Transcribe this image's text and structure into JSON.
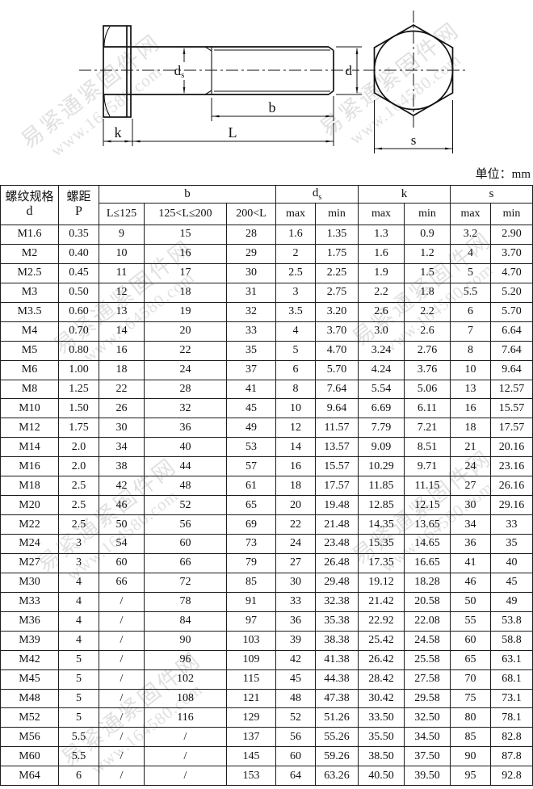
{
  "page": {
    "unit_label": "单位：mm"
  },
  "watermark": {
    "site_name": "易紧通紧固件网",
    "site_url": "www.164580.com"
  },
  "drawing": {
    "labels": {
      "k": "k",
      "L": "L",
      "b": "b",
      "ds_main": "d",
      "ds_sub": "s",
      "d": "d",
      "s": "s"
    }
  },
  "table": {
    "header": {
      "col1_line1": "螺纹规格",
      "col1_line2": "d",
      "col2_line1": "螺距",
      "col2_line2": "P",
      "b_group": "b",
      "b_sub": [
        "L≤125",
        "125<L≤200",
        "200<L"
      ],
      "ds_main": "d",
      "ds_sub": "s",
      "k_group": "k",
      "s_group": "s",
      "max": "max",
      "min": "min"
    },
    "rows": [
      [
        "M1.6",
        "0.35",
        "9",
        "15",
        "28",
        "1.6",
        "1.35",
        "1.3",
        "0.9",
        "3.2",
        "2.90"
      ],
      [
        "M2",
        "0.40",
        "10",
        "16",
        "29",
        "2",
        "1.75",
        "1.6",
        "1.2",
        "4",
        "3.70"
      ],
      [
        "M2.5",
        "0.45",
        "11",
        "17",
        "30",
        "2.5",
        "2.25",
        "1.9",
        "1.5",
        "5",
        "4.70"
      ],
      [
        "M3",
        "0.50",
        "12",
        "18",
        "31",
        "3",
        "2.75",
        "2.2",
        "1.8",
        "5.5",
        "5.20"
      ],
      [
        "M3.5",
        "0.60",
        "13",
        "19",
        "32",
        "3.5",
        "3.20",
        "2.6",
        "2.2",
        "6",
        "5.70"
      ],
      [
        "M4",
        "0.70",
        "14",
        "20",
        "33",
        "4",
        "3.70",
        "3.0",
        "2.6",
        "7",
        "6.64"
      ],
      [
        "M5",
        "0.80",
        "16",
        "22",
        "35",
        "5",
        "4.70",
        "3.24",
        "2.76",
        "8",
        "7.64"
      ],
      [
        "M6",
        "1.00",
        "18",
        "24",
        "37",
        "6",
        "5.70",
        "4.24",
        "3.76",
        "10",
        "9.64"
      ],
      [
        "M8",
        "1.25",
        "22",
        "28",
        "41",
        "8",
        "7.64",
        "5.54",
        "5.06",
        "13",
        "12.57"
      ],
      [
        "M10",
        "1.50",
        "26",
        "32",
        "45",
        "10",
        "9.64",
        "6.69",
        "6.11",
        "16",
        "15.57"
      ],
      [
        "M12",
        "1.75",
        "30",
        "36",
        "49",
        "12",
        "11.57",
        "7.79",
        "7.21",
        "18",
        "17.57"
      ],
      [
        "M14",
        "2.0",
        "34",
        "40",
        "53",
        "14",
        "13.57",
        "9.09",
        "8.51",
        "21",
        "20.16"
      ],
      [
        "M16",
        "2.0",
        "38",
        "44",
        "57",
        "16",
        "15.57",
        "10.29",
        "9.71",
        "24",
        "23.16"
      ],
      [
        "M18",
        "2.5",
        "42",
        "48",
        "61",
        "18",
        "17.57",
        "11.85",
        "11.15",
        "27",
        "26.16"
      ],
      [
        "M20",
        "2.5",
        "46",
        "52",
        "65",
        "20",
        "19.48",
        "12.85",
        "12.15",
        "30",
        "29.16"
      ],
      [
        "M22",
        "2.5",
        "50",
        "56",
        "69",
        "22",
        "21.48",
        "14.35",
        "13.65",
        "34",
        "33"
      ],
      [
        "M24",
        "3",
        "54",
        "60",
        "73",
        "24",
        "23.48",
        "15.35",
        "14.65",
        "36",
        "35"
      ],
      [
        "M27",
        "3",
        "60",
        "66",
        "79",
        "27",
        "26.48",
        "17.35",
        "16.65",
        "41",
        "40"
      ],
      [
        "M30",
        "4",
        "66",
        "72",
        "85",
        "30",
        "29.48",
        "19.12",
        "18.28",
        "46",
        "45"
      ],
      [
        "M33",
        "4",
        "/",
        "78",
        "91",
        "33",
        "32.38",
        "21.42",
        "20.58",
        "50",
        "49"
      ],
      [
        "M36",
        "4",
        "/",
        "84",
        "97",
        "36",
        "35.38",
        "22.92",
        "22.08",
        "55",
        "53.8"
      ],
      [
        "M39",
        "4",
        "/",
        "90",
        "103",
        "39",
        "38.38",
        "25.42",
        "24.58",
        "60",
        "58.8"
      ],
      [
        "M42",
        "5",
        "/",
        "96",
        "109",
        "42",
        "41.38",
        "26.42",
        "25.58",
        "65",
        "63.1"
      ],
      [
        "M45",
        "5",
        "/",
        "102",
        "115",
        "45",
        "44.38",
        "28.42",
        "27.58",
        "70",
        "68.1"
      ],
      [
        "M48",
        "5",
        "/",
        "108",
        "121",
        "48",
        "47.38",
        "30.42",
        "29.58",
        "75",
        "73.1"
      ],
      [
        "M52",
        "5",
        "/",
        "116",
        "129",
        "52",
        "51.26",
        "33.50",
        "32.50",
        "80",
        "78.1"
      ],
      [
        "M56",
        "5.5",
        "/",
        "/",
        "137",
        "56",
        "55.26",
        "35.50",
        "34.50",
        "85",
        "82.8"
      ],
      [
        "M60",
        "5.5",
        "/",
        "/",
        "145",
        "60",
        "59.26",
        "38.50",
        "37.50",
        "90",
        "87.8"
      ],
      [
        "M64",
        "6",
        "/",
        "/",
        "153",
        "64",
        "63.26",
        "40.50",
        "39.50",
        "95",
        "92.8"
      ]
    ]
  }
}
